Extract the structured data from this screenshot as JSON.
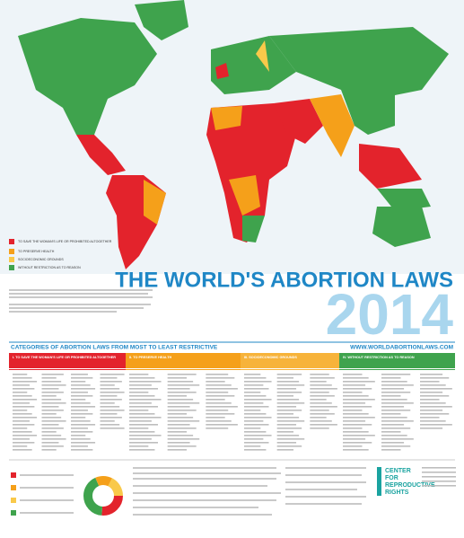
{
  "map_legend": {
    "items": [
      "TO SAVE THE WOMAN'S LIFE OR PROHIBITED ALTOGETHER",
      "TO PRESERVE HEALTH",
      "SOCIOECONOMIC GROUNDS",
      "WITHOUT RESTRICTION AS TO REASON"
    ]
  },
  "header": {
    "title": "THE WORLD'S ABORTION LAWS",
    "year": "2014"
  },
  "categories_bar": {
    "title": "CATEGORIES OF ABORTION LAWS FROM MOST TO LEAST RESTRICTIVE",
    "url": "WWW.WORLDABORTIONLAWS.COM"
  },
  "columns": [
    "I. TO SAVE THE WOMAN'S LIFE OR PROHIBITED ALTOGETHER",
    "II. TO PRESERVE HEALTH",
    "III. SOCIOECONOMIC GROUNDS",
    "IV. WITHOUT RESTRICTION AS TO REASON"
  ],
  "footer": {
    "logo": [
      "CENTER",
      "FOR",
      "REPRODUCTIVE",
      "RIGHTS"
    ]
  }
}
